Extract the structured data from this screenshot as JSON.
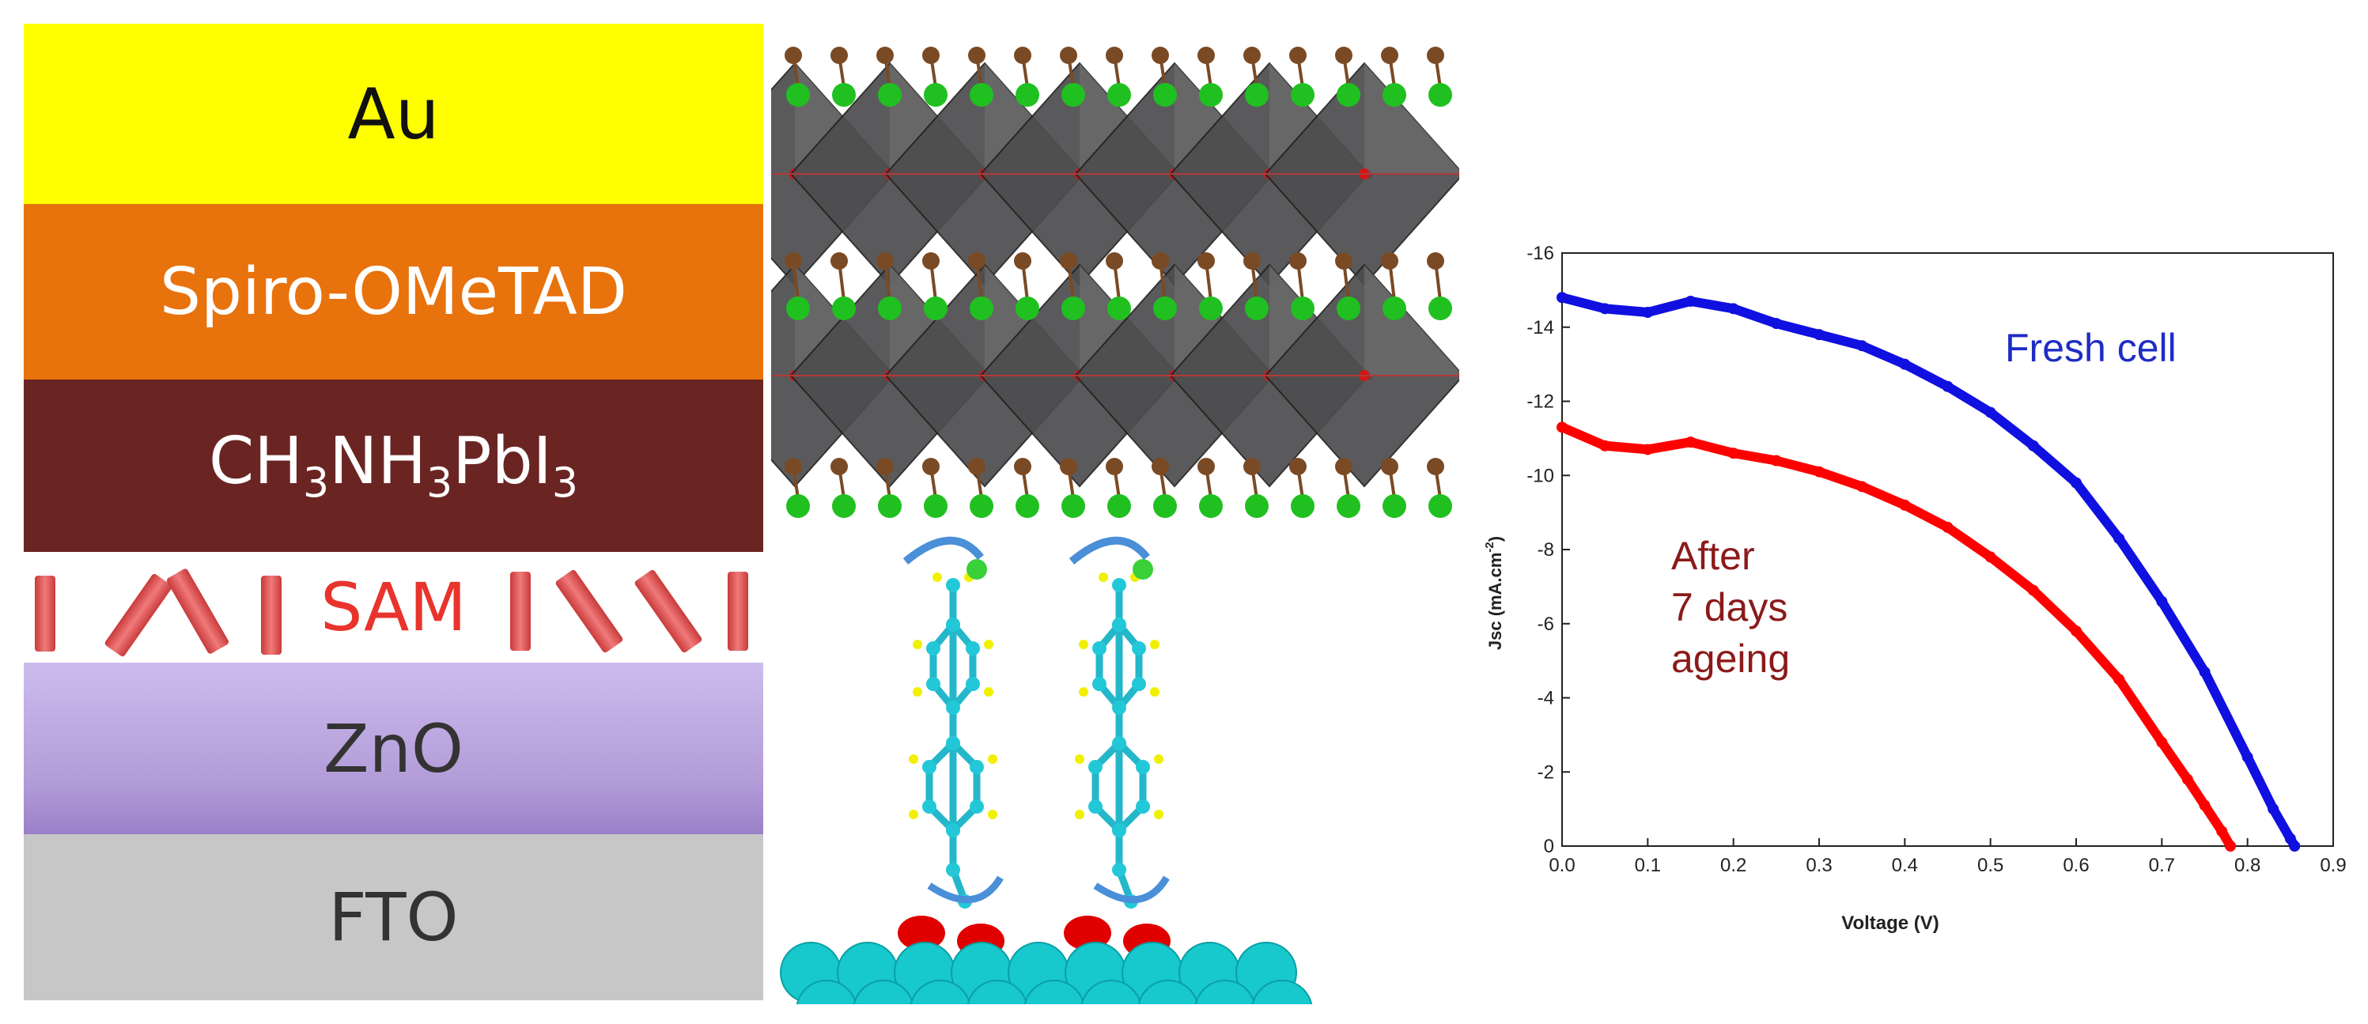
{
  "stack": {
    "layers": [
      {
        "label": "Au",
        "color": "#ffff00",
        "text_color": "#111111"
      },
      {
        "label": "Spiro-OMeTAD",
        "color": "#e8720c",
        "text_color": "#ffffff"
      },
      {
        "label_main": "CH",
        "sub1": "3",
        "mid": "NH",
        "sub2": "3",
        "tail": "PbI",
        "sub3": "3",
        "color": "#6a2523",
        "text_color": "#ffffff"
      },
      {
        "label": "SAM",
        "color": "#ffffff",
        "text_color": "#e8342c"
      },
      {
        "label": "ZnO",
        "color": "#b9a3dd",
        "text_color": "#333333"
      },
      {
        "label": "FTO",
        "color": "#c7c7c7",
        "text_color": "#333333"
      }
    ]
  },
  "chart_data": {
    "type": "line",
    "xlabel": "Voltage (V)",
    "ylabel": "Jsc (mA.cm",
    "ylabel_sup": "-2",
    "ylabel_close": ")",
    "xlim": [
      0.0,
      0.9
    ],
    "ylim": [
      0,
      -16
    ],
    "x_ticks": [
      "0.0",
      "0.1",
      "0.2",
      "0.3",
      "0.4",
      "0.5",
      "0.6",
      "0.7",
      "0.8",
      "0.9"
    ],
    "y_ticks": [
      "-16",
      "-14",
      "-12",
      "-10",
      "-8",
      "-6",
      "-4",
      "-2",
      "0"
    ],
    "annotations": [
      {
        "text": "Fresh cell",
        "color": "#1f2cc4"
      },
      {
        "lines": [
          "After",
          "7 days",
          "ageing"
        ],
        "color": "#8b1a1a"
      }
    ],
    "series": [
      {
        "color": "#1010e0",
        "x": [
          0.0,
          0.05,
          0.1,
          0.15,
          0.2,
          0.25,
          0.3,
          0.35,
          0.4,
          0.45,
          0.5,
          0.55,
          0.6,
          0.65,
          0.7,
          0.75,
          0.8,
          0.83,
          0.85,
          0.855
        ],
        "y": [
          -14.8,
          -14.5,
          -14.4,
          -14.7,
          -14.5,
          -14.1,
          -13.8,
          -13.5,
          -13.0,
          -12.4,
          -11.7,
          -10.8,
          -9.8,
          -8.3,
          -6.6,
          -4.7,
          -2.4,
          -1.0,
          -0.2,
          0.0
        ]
      },
      {
        "color": "#ff0000",
        "x": [
          0.0,
          0.05,
          0.1,
          0.15,
          0.2,
          0.25,
          0.3,
          0.35,
          0.4,
          0.45,
          0.5,
          0.55,
          0.6,
          0.65,
          0.7,
          0.73,
          0.75,
          0.77,
          0.78
        ],
        "y": [
          -11.3,
          -10.8,
          -10.7,
          -10.9,
          -10.6,
          -10.4,
          -10.1,
          -9.7,
          -9.2,
          -8.6,
          -7.8,
          -6.9,
          -5.8,
          -4.5,
          -2.8,
          -1.8,
          -1.1,
          -0.4,
          0.0
        ]
      }
    ]
  }
}
